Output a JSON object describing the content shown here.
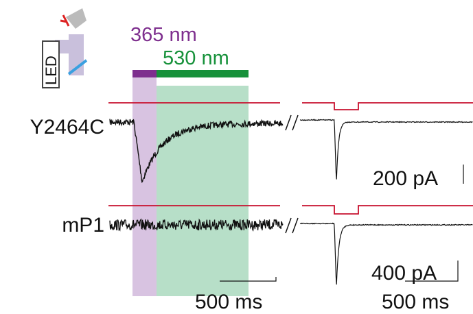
{
  "icon": {
    "label": "LED"
  },
  "stimuli": {
    "uv": "365 nm",
    "green": "530 nm"
  },
  "traces": [
    {
      "label": "Y2464C",
      "scale_current": "200 pA",
      "scale_time": "500 ms"
    },
    {
      "label": "mP1",
      "scale_current": "400 pA",
      "scale_time": "500 ms"
    }
  ]
}
